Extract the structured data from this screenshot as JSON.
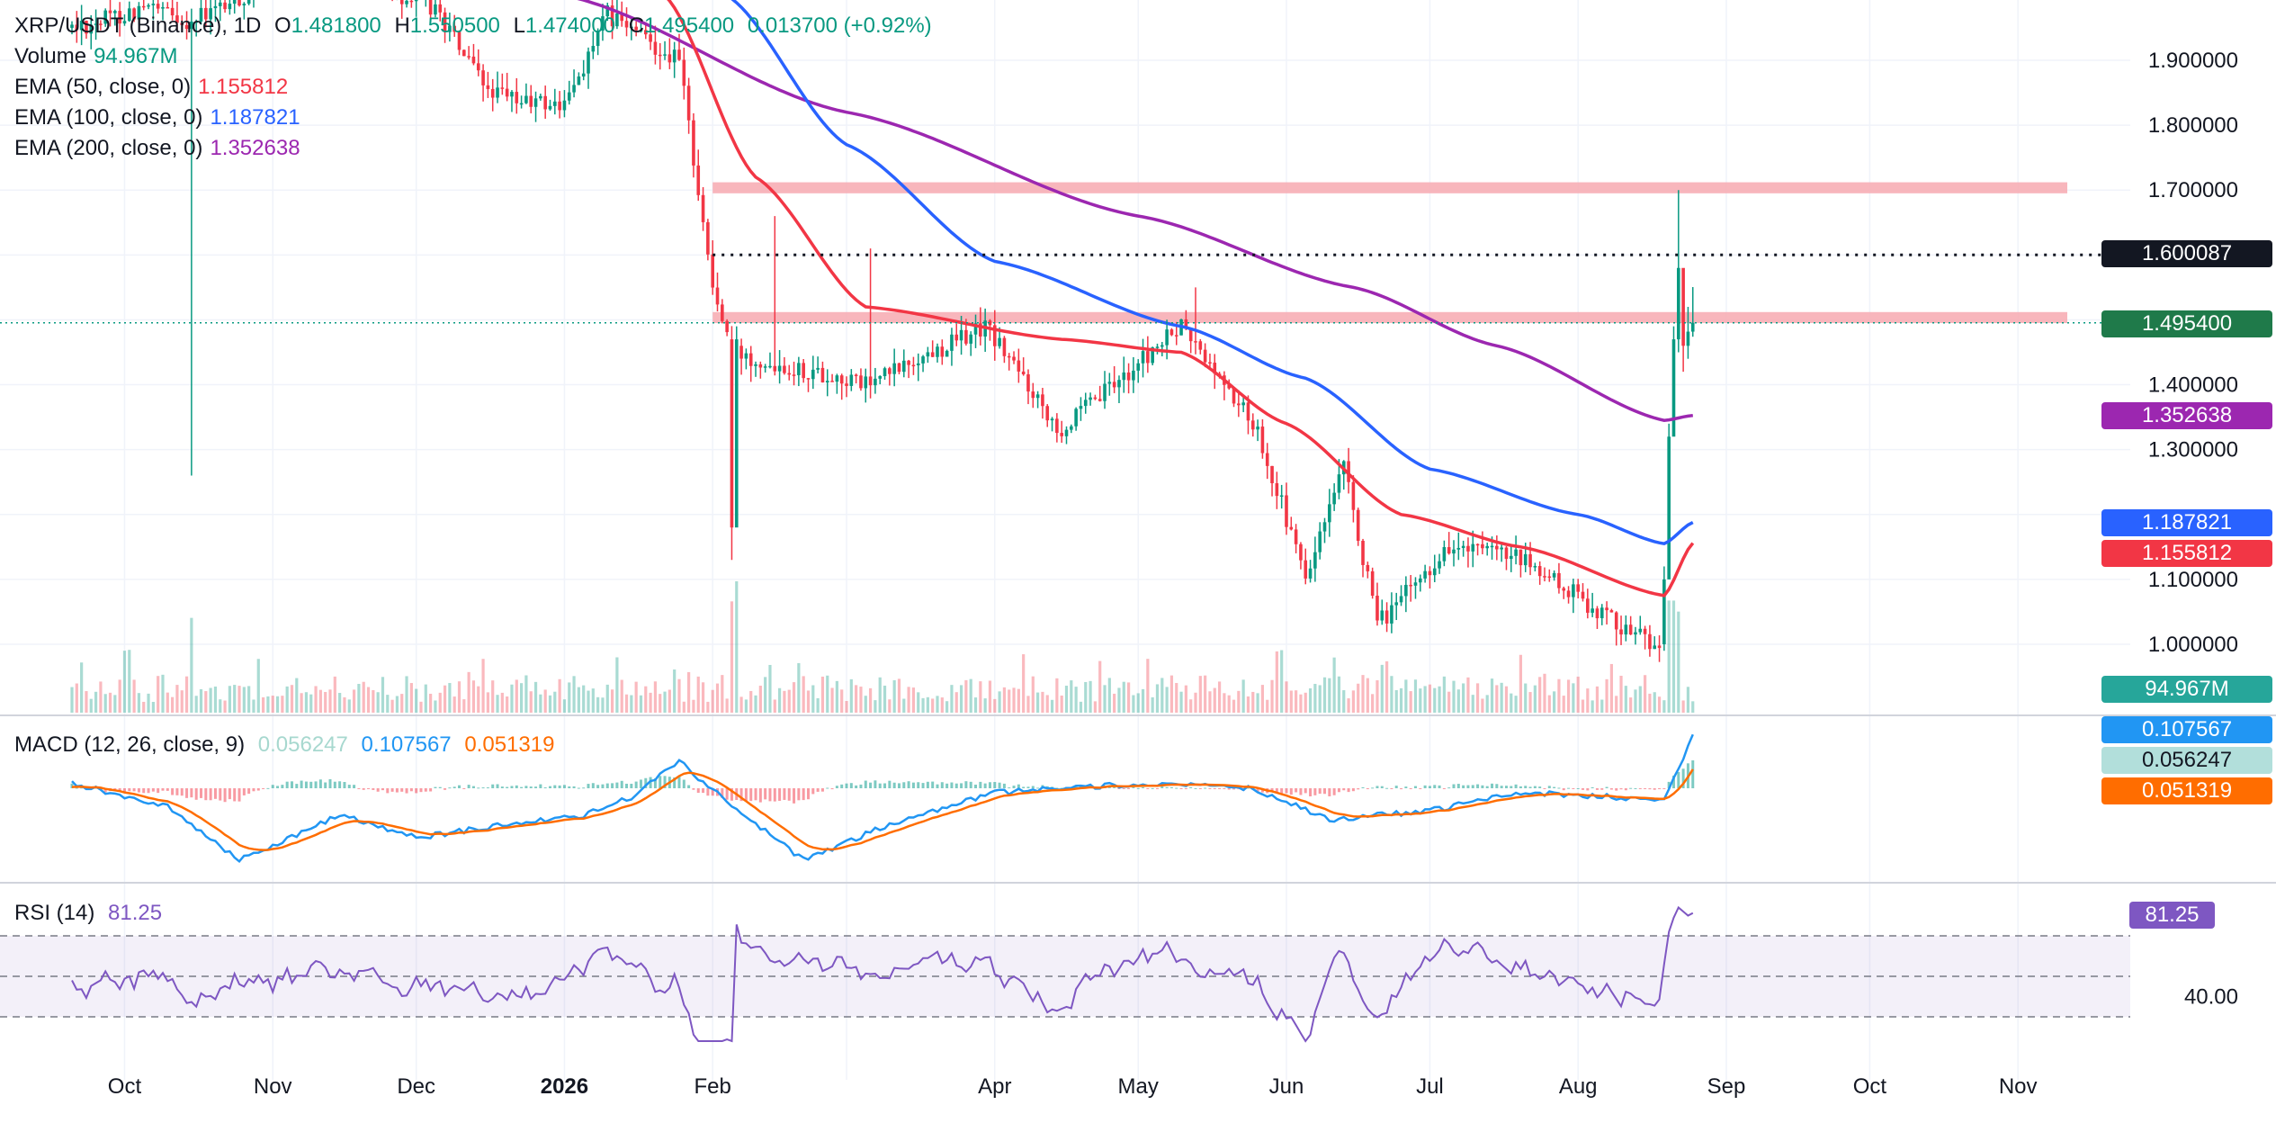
{
  "header": {
    "symbol": "XRP/USDT (Binance), 1D",
    "o_label": "O",
    "o_value": "1.481800",
    "h_label": "H",
    "h_value": "1.550500",
    "l_label": "L",
    "l_value": "1.474000",
    "c_label": "C",
    "c_value": "1.495400",
    "change": "0.013700 (+0.92%)"
  },
  "indicators": {
    "volume": {
      "label": "Volume",
      "value": "94.967M"
    },
    "ema50": {
      "label": "EMA (50, close, 0)",
      "value": "1.155812"
    },
    "ema100": {
      "label": "EMA (100, close, 0)",
      "value": "1.187821"
    },
    "ema200": {
      "label": "EMA (200, close, 0)",
      "value": "1.352638"
    },
    "macd": {
      "label": "MACD (12, 26, close, 9)",
      "hist": "0.056247",
      "macd": "0.107567",
      "signal": "0.051319"
    },
    "rsi": {
      "label": "RSI (14)",
      "value": "81.25"
    }
  },
  "price_scale": {
    "ticks": [
      "1.900000",
      "1.800000",
      "1.700000",
      "1.400000",
      "1.300000",
      "1.100000",
      "1.000000"
    ],
    "rsi_tick": "40.00"
  },
  "tags": {
    "dotted_level": "1.600087",
    "last_price": "1.495400",
    "ema200": "1.352638",
    "ema100": "1.187821",
    "ema50": "1.155812",
    "volume": "94.967M",
    "macd": "0.107567",
    "macd_hist": "0.056247",
    "macd_signal": "0.051319",
    "rsi": "81.25"
  },
  "time_axis": [
    "Oct",
    "Nov",
    "Dec",
    "2026",
    "Feb",
    "Apr",
    "May",
    "Jun",
    "Jul",
    "Aug",
    "Sep",
    "Oct",
    "Nov"
  ],
  "colors": {
    "up": "#089981",
    "down": "#F23645",
    "ema50": "#F23645",
    "ema100": "#2962FF",
    "ema200": "#9C27B0",
    "macd": "#2196F3",
    "signal": "#FF6D00",
    "rsi": "#7E57C2",
    "zone": "#F7A9B0",
    "text": "#131722"
  },
  "chart_data": {
    "type": "candlestick",
    "x_range": [
      "2025-09-20",
      "2026-11-10"
    ],
    "y_range": [
      0.95,
      1.97
    ],
    "zones": [
      {
        "from": 1.695,
        "to": 1.712
      },
      {
        "from": 1.495,
        "to": 1.512
      }
    ],
    "dotted_level": 1.600087,
    "last_price": 1.4954,
    "ohlc_anchors": [
      {
        "date": "2025-10-15",
        "close": 1.96,
        "low": 1.26,
        "note": "long wick"
      },
      {
        "date": "2025-12-20",
        "close": 1.84
      },
      {
        "date": "2026-01-25",
        "close": 1.9
      },
      {
        "date": "2026-02-01",
        "close": 1.55
      },
      {
        "date": "2026-02-05",
        "close": 1.45,
        "low": 1.13
      },
      {
        "date": "2026-03-05",
        "close": 1.4
      },
      {
        "date": "2026-03-30",
        "close": 1.49
      },
      {
        "date": "2026-04-15",
        "close": 1.33
      },
      {
        "date": "2026-05-10",
        "close": 1.49
      },
      {
        "date": "2026-05-26",
        "close": 1.33
      },
      {
        "date": "2026-06-05",
        "close": 1.1
      },
      {
        "date": "2026-06-13",
        "close": 1.27
      },
      {
        "date": "2026-06-20",
        "close": 1.03
      },
      {
        "date": "2026-07-05",
        "close": 1.15
      },
      {
        "date": "2026-07-20",
        "close": 1.13
      },
      {
        "date": "2026-08-10",
        "close": 1.03
      },
      {
        "date": "2026-08-18",
        "close": 1.0
      },
      {
        "date": "2026-08-20",
        "close": 1.32
      },
      {
        "date": "2026-08-22",
        "close": 1.42,
        "high": 1.7
      },
      {
        "date": "2026-08-25",
        "close": 1.4954
      }
    ],
    "ema50": [
      [
        "2026-01-22",
        2.0
      ],
      [
        "2026-02-10",
        1.72
      ],
      [
        "2026-03-05",
        1.52
      ],
      [
        "2026-04-15",
        1.47
      ],
      [
        "2026-05-10",
        1.45
      ],
      [
        "2026-06-01",
        1.34
      ],
      [
        "2026-06-25",
        1.2
      ],
      [
        "2026-07-20",
        1.15
      ],
      [
        "2026-08-19",
        1.075
      ],
      [
        "2026-08-25",
        1.155812
      ]
    ],
    "ema100": [
      [
        "2026-02-04",
        2.0
      ],
      [
        "2026-03-01",
        1.77
      ],
      [
        "2026-04-01",
        1.59
      ],
      [
        "2026-05-10",
        1.49
      ],
      [
        "2026-06-05",
        1.41
      ],
      [
        "2026-07-01",
        1.27
      ],
      [
        "2026-08-01",
        1.2
      ],
      [
        "2026-08-19",
        1.155
      ],
      [
        "2026-08-25",
        1.187821
      ]
    ],
    "ema200": [
      [
        "2026-01-01",
        2.0
      ],
      [
        "2026-03-01",
        1.82
      ],
      [
        "2026-05-01",
        1.66
      ],
      [
        "2026-06-15",
        1.55
      ],
      [
        "2026-07-15",
        1.46
      ],
      [
        "2026-08-19",
        1.345
      ],
      [
        "2026-08-25",
        1.352638
      ]
    ],
    "volume_series": "Volume",
    "macd": {
      "fast": 12,
      "slow": 26,
      "signal": 9,
      "last_macd": 0.107567,
      "last_signal": 0.051319,
      "last_hist": 0.056247
    },
    "rsi": {
      "period": 14,
      "last": 81.25,
      "bands": [
        30,
        50,
        70
      ]
    }
  }
}
